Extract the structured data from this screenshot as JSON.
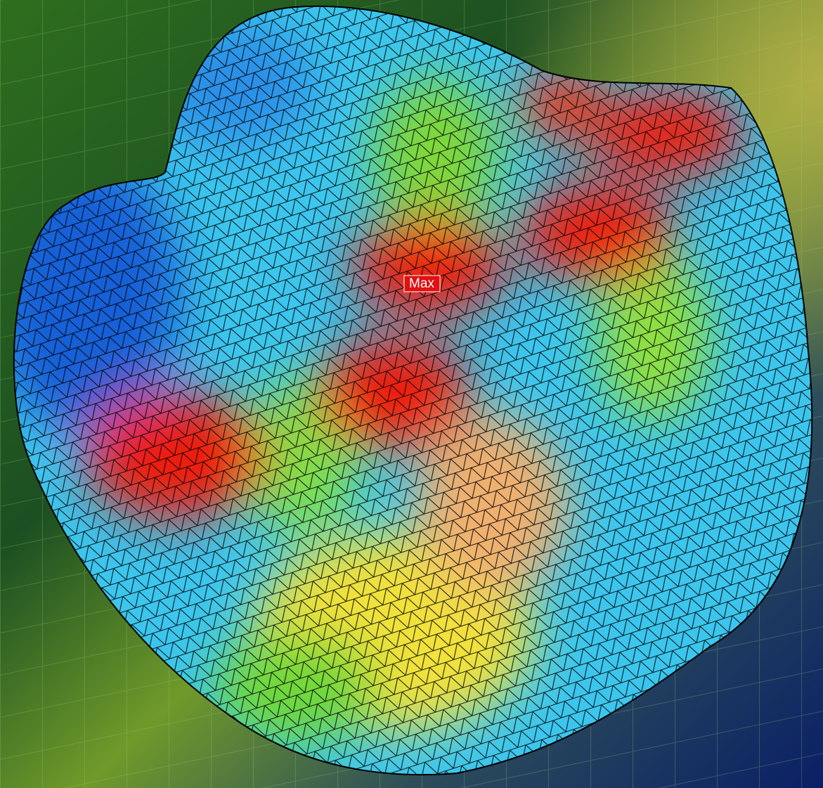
{
  "label": {
    "text": "Max"
  }
}
